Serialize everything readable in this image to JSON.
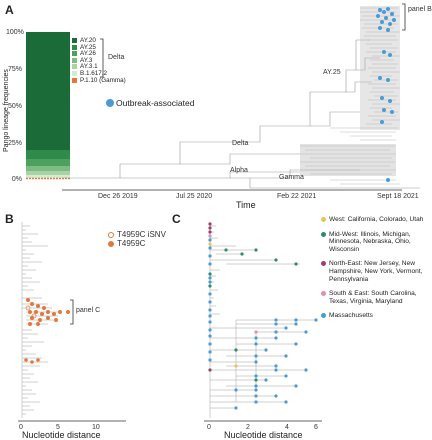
{
  "panelA": {
    "letter": "A",
    "yaxis_title": "Pango lineage frequencies",
    "yticks": [
      "100%",
      "75%",
      "50%",
      "25%",
      "0%"
    ],
    "lineage_legend": [
      {
        "label": "AY.20",
        "color": "#1a6b38"
      },
      {
        "label": "AY.25",
        "color": "#2e8b4a"
      },
      {
        "label": "AY.26",
        "color": "#4ea061"
      },
      {
        "label": "AY.3",
        "color": "#7dbd84"
      },
      {
        "label": "AY.3.1",
        "color": "#a9d3a5"
      },
      {
        "label": "B.1.617.2",
        "color": "#d6ead0"
      },
      {
        "label": "P.1.10 (Gamma)",
        "color": "#e07a3c"
      }
    ],
    "delta_bracket_label": "Delta",
    "outbreak_label": "Outbreak-associated",
    "outbreak_color": "#4a9bd4",
    "tree_labels": {
      "ay25": "AY.25",
      "delta": "Delta",
      "alpha": "Alpha",
      "gamma": "Gamma"
    },
    "panelB_tag": "panel B",
    "date_ticks": [
      "Dec 26 2019",
      "Jul 25  2020",
      "Feb 22 2021",
      "Sept 18 2021"
    ],
    "xaxis_title": "Time"
  },
  "panelB": {
    "letter": "B",
    "legend": [
      {
        "label": "T4959C iSNV",
        "color": "#e07a3c",
        "style": "open"
      },
      {
        "label": "T4959C",
        "color": "#e07a3c",
        "style": "filled"
      }
    ],
    "panelC_tag": "panel C",
    "xticks": [
      "0",
      "5",
      "10"
    ],
    "xaxis_title": "Nucleotide distance"
  },
  "panelC": {
    "letter": "C",
    "legend": [
      {
        "label": "West: California, Colorado, Utah",
        "color": "#e8c35a"
      },
      {
        "label": "Mid-West: Illinois, Michigan, Minnesota, Nebraska, Ohio, Wisconsin",
        "color": "#2e8b6e"
      },
      {
        "label": "North-East: New Jersey, New Hampshire, New York, Vermont, Pennsylvania",
        "color": "#9b3f6b"
      },
      {
        "label": "South & East: South Carolina, Texas, Virginia, Maryland",
        "color": "#e08fb3"
      },
      {
        "label": "Massachusetts",
        "color": "#4a9bd4"
      }
    ],
    "xticks": [
      "0",
      "2",
      "4",
      "6"
    ],
    "xaxis_title": "Nucleotide distance"
  }
}
